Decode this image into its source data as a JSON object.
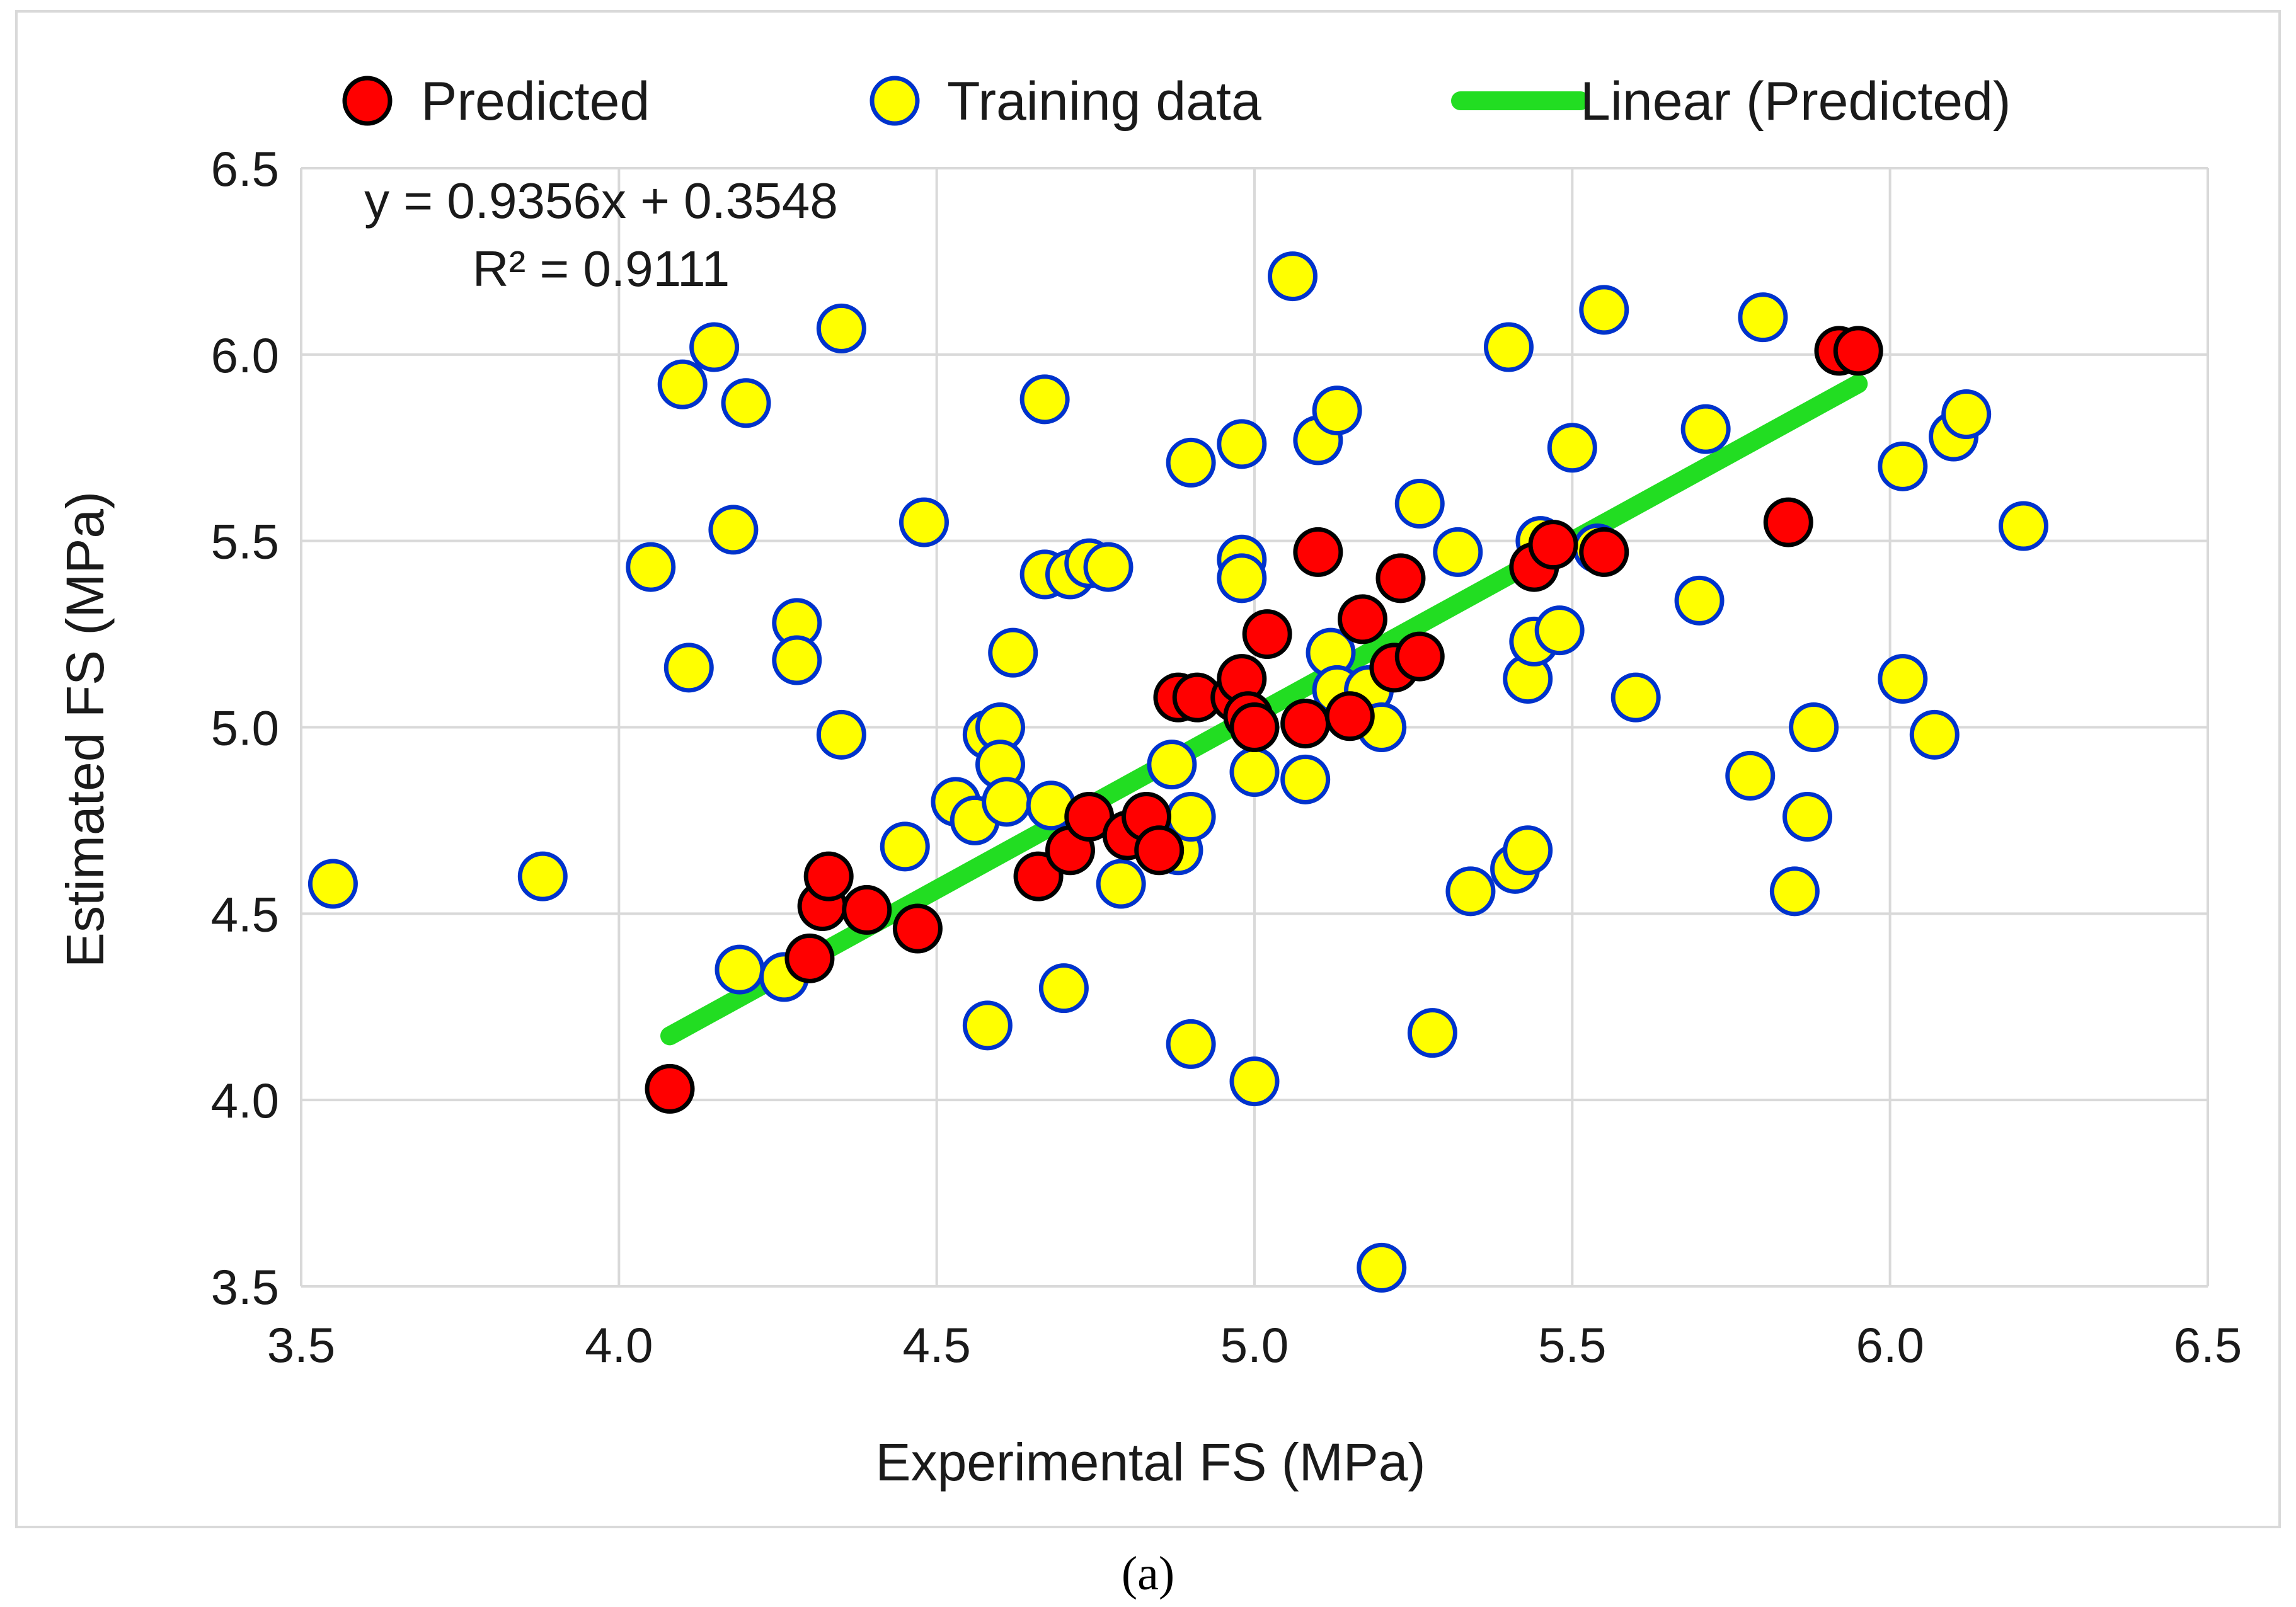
{
  "chart_data": {
    "type": "scatter",
    "xlabel": "Experimental FS (MPa)",
    "ylabel": "Estimated FS (MPa)",
    "xlim": [
      3.5,
      6.5
    ],
    "ylim": [
      3.5,
      6.5
    ],
    "x_ticks": [
      "3.5",
      "4.0",
      "4.5",
      "5.0",
      "5.5",
      "6.0",
      "6.5"
    ],
    "y_ticks": [
      "3.5",
      "4.0",
      "4.5",
      "5.0",
      "5.5",
      "6.0",
      "6.5"
    ],
    "grid": true,
    "legend_position": "top",
    "legend": {
      "predicted": "Predicted",
      "training": "Training data",
      "linear": "Linear (Predicted)"
    },
    "equation": "y = 0.9356x + 0.3548",
    "r_squared": "R² = 0.9111",
    "trendline": {
      "slope": 0.9356,
      "intercept": 0.3548,
      "x_range": [
        4.08,
        5.95
      ]
    },
    "colors": {
      "predicted_fill": "#ff0000",
      "predicted_stroke": "#000000",
      "training_fill": "#ffff00",
      "training_stroke": "#0033cc",
      "trendline": "#22dd22",
      "grid": "#d9d9d9"
    },
    "series": [
      {
        "name": "Training data",
        "points": [
          [
            3.55,
            4.58
          ],
          [
            3.88,
            4.6
          ],
          [
            4.05,
            5.43
          ],
          [
            4.1,
            5.92
          ],
          [
            4.11,
            5.16
          ],
          [
            4.15,
            6.02
          ],
          [
            4.18,
            5.53
          ],
          [
            4.2,
            5.87
          ],
          [
            4.19,
            4.35
          ],
          [
            4.26,
            4.33
          ],
          [
            4.28,
            5.28
          ],
          [
            4.28,
            5.18
          ],
          [
            4.35,
            6.07
          ],
          [
            4.35,
            4.98
          ],
          [
            4.45,
            4.68
          ],
          [
            4.48,
            5.55
          ],
          [
            4.53,
            4.8
          ],
          [
            4.56,
            4.75
          ],
          [
            4.58,
            4.98
          ],
          [
            4.58,
            4.2
          ],
          [
            4.6,
            5.0
          ],
          [
            4.6,
            4.9
          ],
          [
            4.61,
            4.8
          ],
          [
            4.62,
            5.2
          ],
          [
            4.67,
            5.88
          ],
          [
            4.67,
            5.41
          ],
          [
            4.68,
            4.79
          ],
          [
            4.7,
            4.3
          ],
          [
            4.71,
            5.41
          ],
          [
            4.74,
            5.44
          ],
          [
            4.77,
            5.43
          ],
          [
            4.79,
            4.58
          ],
          [
            4.87,
            4.9
          ],
          [
            4.88,
            4.67
          ],
          [
            4.9,
            5.71
          ],
          [
            4.9,
            4.76
          ],
          [
            4.9,
            4.15
          ],
          [
            4.98,
            5.76
          ],
          [
            4.98,
            5.45
          ],
          [
            4.98,
            5.4
          ],
          [
            5.0,
            4.88
          ],
          [
            5.0,
            4.05
          ],
          [
            5.06,
            6.21
          ],
          [
            5.08,
            4.86
          ],
          [
            5.1,
            5.77
          ],
          [
            5.13,
            5.85
          ],
          [
            5.12,
            5.2
          ],
          [
            5.13,
            5.1
          ],
          [
            5.18,
            5.1
          ],
          [
            5.2,
            5.0
          ],
          [
            5.2,
            3.55
          ],
          [
            5.26,
            5.6
          ],
          [
            5.28,
            4.18
          ],
          [
            5.32,
            5.47
          ],
          [
            5.34,
            4.56
          ],
          [
            5.4,
            6.02
          ],
          [
            5.41,
            4.62
          ],
          [
            5.43,
            4.67
          ],
          [
            5.43,
            5.13
          ],
          [
            5.44,
            5.23
          ],
          [
            5.45,
            5.5
          ],
          [
            5.48,
            5.26
          ],
          [
            5.5,
            5.75
          ],
          [
            5.54,
            5.48
          ],
          [
            5.55,
            6.12
          ],
          [
            5.6,
            5.08
          ],
          [
            5.7,
            5.34
          ],
          [
            5.71,
            5.8
          ],
          [
            5.78,
            4.87
          ],
          [
            5.8,
            6.1
          ],
          [
            5.85,
            4.56
          ],
          [
            5.87,
            4.76
          ],
          [
            5.88,
            5.0
          ],
          [
            6.02,
            5.7
          ],
          [
            6.02,
            5.13
          ],
          [
            6.07,
            4.98
          ],
          [
            6.1,
            5.78
          ],
          [
            6.12,
            5.84
          ],
          [
            6.21,
            5.54
          ]
        ]
      },
      {
        "name": "Predicted",
        "points": [
          [
            4.08,
            4.03
          ],
          [
            4.3,
            4.38
          ],
          [
            4.32,
            4.52
          ],
          [
            4.33,
            4.6
          ],
          [
            4.39,
            4.51
          ],
          [
            4.47,
            4.46
          ],
          [
            4.66,
            4.6
          ],
          [
            4.71,
            4.67
          ],
          [
            4.74,
            4.76
          ],
          [
            4.8,
            4.71
          ],
          [
            4.83,
            4.76
          ],
          [
            4.85,
            4.67
          ],
          [
            4.88,
            5.08
          ],
          [
            4.91,
            5.08
          ],
          [
            4.97,
            5.08
          ],
          [
            4.98,
            5.13
          ],
          [
            4.99,
            5.03
          ],
          [
            5.0,
            5.0
          ],
          [
            5.02,
            5.25
          ],
          [
            5.08,
            5.01
          ],
          [
            5.1,
            5.47
          ],
          [
            5.15,
            5.03
          ],
          [
            5.17,
            5.29
          ],
          [
            5.22,
            5.16
          ],
          [
            5.23,
            5.4
          ],
          [
            5.26,
            5.19
          ],
          [
            5.44,
            5.43
          ],
          [
            5.47,
            5.49
          ],
          [
            5.55,
            5.47
          ],
          [
            5.84,
            5.55
          ],
          [
            5.92,
            6.01
          ],
          [
            5.95,
            6.01
          ]
        ]
      }
    ]
  },
  "panel_label": "(a)"
}
